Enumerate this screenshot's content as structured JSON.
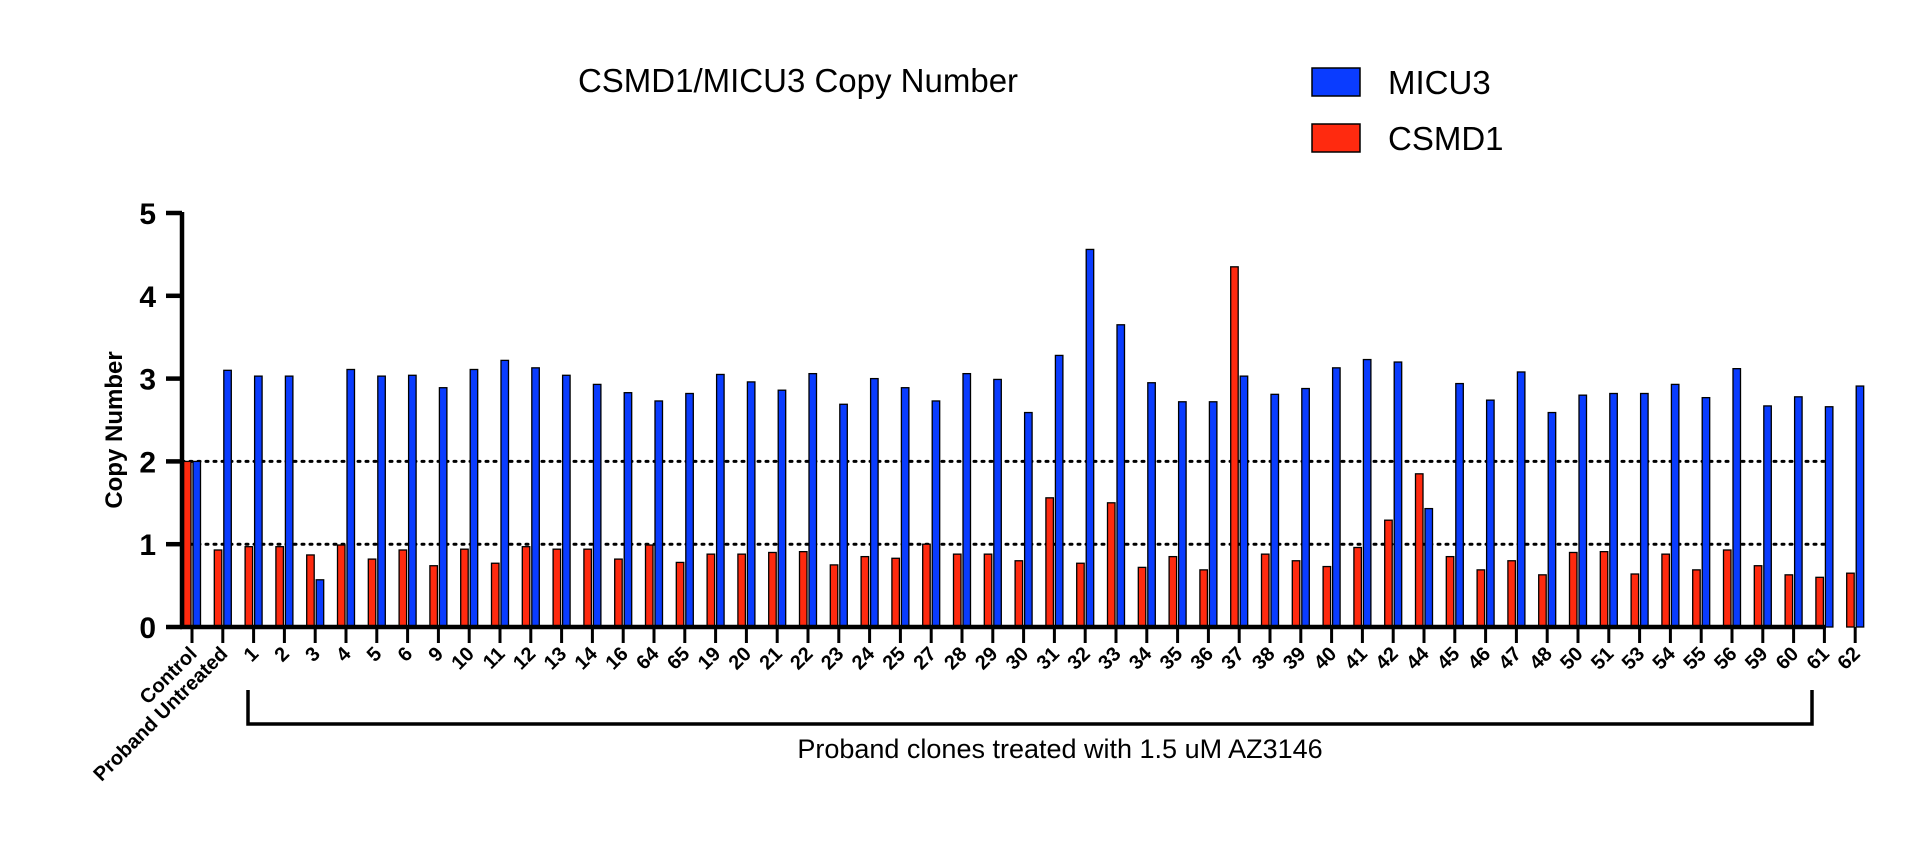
{
  "chart_data": {
    "type": "bar",
    "title": "CSMD1/MICU3 Copy Number",
    "xlabel": "",
    "ylabel": "Copy Number",
    "ylim": [
      0,
      5
    ],
    "yticks": [
      0,
      1,
      2,
      3,
      4,
      5
    ],
    "reference_lines": [
      1,
      2
    ],
    "legend_position": "top-right",
    "bracket_label": "Proband clones treated with 1.5 uM AZ3146",
    "categories": [
      "Control",
      "Proband Untreated",
      "1",
      "2",
      "3",
      "4",
      "5",
      "6",
      "9",
      "10",
      "11",
      "12",
      "13",
      "14",
      "16",
      "64",
      "65",
      "19",
      "20",
      "21",
      "22",
      "23",
      "24",
      "25",
      "27",
      "28",
      "29",
      "30",
      "31",
      "32",
      "33",
      "34",
      "35",
      "36",
      "37",
      "38",
      "39",
      "40",
      "41",
      "42",
      "44",
      "45",
      "46",
      "47",
      "48",
      "50",
      "51",
      "53",
      "54",
      "55",
      "56",
      "59",
      "60",
      "61",
      "62"
    ],
    "series": [
      {
        "name": "CSMD1",
        "color": "#ff2a0f",
        "values": [
          2.0,
          0.93,
          0.97,
          0.97,
          0.87,
          0.99,
          0.82,
          0.93,
          0.74,
          0.94,
          0.77,
          0.97,
          0.94,
          0.94,
          0.82,
          0.99,
          0.78,
          0.88,
          0.88,
          0.9,
          0.91,
          0.75,
          0.85,
          0.83,
          1.0,
          0.88,
          0.88,
          0.8,
          1.56,
          0.77,
          1.5,
          0.72,
          0.85,
          0.69,
          4.35,
          0.88,
          0.8,
          0.73,
          0.96,
          1.29,
          1.85,
          0.85,
          0.69,
          0.8,
          0.63,
          0.9,
          0.91,
          0.64,
          0.88,
          0.69,
          0.93,
          0.74,
          0.63,
          0.6,
          0.65
        ]
      },
      {
        "name": "MICU3",
        "color": "#0a3cff",
        "values": [
          2.0,
          3.1,
          3.03,
          3.03,
          0.57,
          3.11,
          3.03,
          3.04,
          2.89,
          3.11,
          3.22,
          3.13,
          3.04,
          2.93,
          2.83,
          2.73,
          2.82,
          3.05,
          2.96,
          2.86,
          3.06,
          2.69,
          3.0,
          2.89,
          2.73,
          3.06,
          2.99,
          2.59,
          3.28,
          4.56,
          3.65,
          2.95,
          2.72,
          2.72,
          3.03,
          2.81,
          2.88,
          3.13,
          3.23,
          3.2,
          1.43,
          2.94,
          2.74,
          3.08,
          2.59,
          2.8,
          2.82,
          2.82,
          2.93,
          2.77,
          3.12,
          2.67,
          2.78,
          2.66,
          2.91
        ]
      }
    ]
  }
}
